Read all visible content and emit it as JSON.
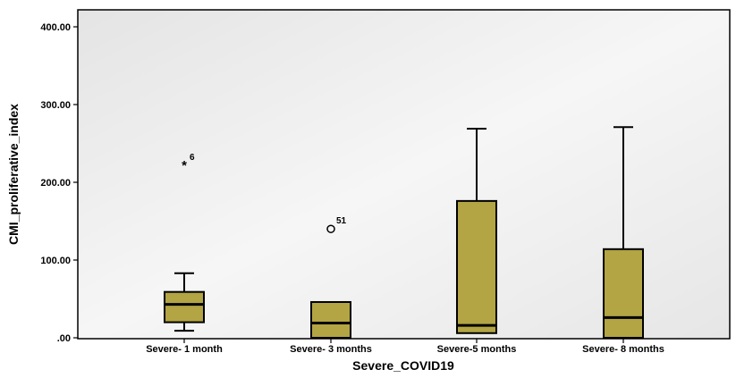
{
  "chart_data": {
    "type": "boxplot",
    "xlabel": "Severe_COVID19",
    "ylabel": "CMI_proliferative_index",
    "ylim": [
      0,
      400
    ],
    "y_ticks": [
      {
        "value": 0,
        "label": ".00"
      },
      {
        "value": 100,
        "label": "100.00"
      },
      {
        "value": 200,
        "label": "200.00"
      },
      {
        "value": 300,
        "label": "300.00"
      },
      {
        "value": 400,
        "label": "400.00"
      }
    ],
    "grid": false,
    "colors": {
      "box_fill": "#b3a444",
      "plot_background": "#ececec",
      "stroke": "#000000"
    },
    "categories": [
      "Severe- 1 month",
      "Severe- 3 months",
      "Severe-5 months",
      "Severe- 8 months"
    ],
    "boxes": [
      {
        "category": "Severe- 1 month",
        "whisker_low": 9,
        "q1": 20,
        "median": 43,
        "q3": 59,
        "whisker_high": 83,
        "outliers": [
          {
            "value": 222,
            "label": "6",
            "marker": "star"
          }
        ]
      },
      {
        "category": "Severe- 3 months",
        "whisker_low": 0,
        "q1": 0,
        "median": 19,
        "q3": 46,
        "whisker_high": 46,
        "outliers": [
          {
            "value": 140,
            "label": "51",
            "marker": "circle"
          }
        ]
      },
      {
        "category": "Severe-5 months",
        "whisker_low": 6,
        "q1": 6,
        "median": 16,
        "q3": 176,
        "whisker_high": 269,
        "outliers": []
      },
      {
        "category": "Severe- 8 months",
        "whisker_low": 0,
        "q1": 0,
        "median": 26,
        "q3": 114,
        "whisker_high": 271,
        "outliers": []
      }
    ]
  }
}
